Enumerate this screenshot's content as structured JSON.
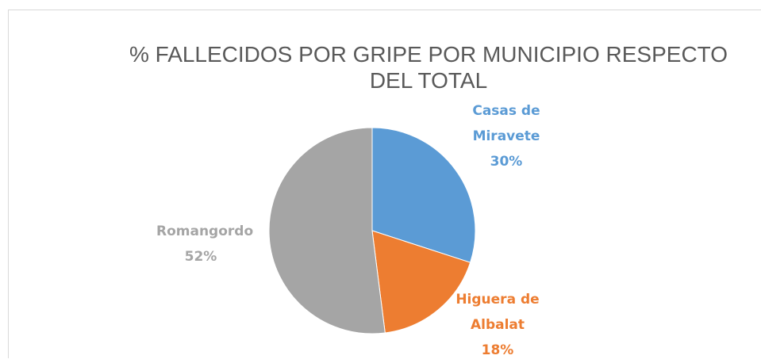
{
  "chart_data": {
    "type": "pie",
    "title": "% FALLECIDOS POR GRIPE POR MUNICIPIO RESPECTO DEL TOTAL",
    "categories": [
      "Casas de Miravete",
      "Higuera de Albalat",
      "Romangordo"
    ],
    "values": [
      30,
      18,
      52
    ],
    "value_labels": [
      "30%",
      "18%",
      "52%"
    ],
    "colors": [
      "#5b9bd5",
      "#ed7d31",
      "#a5a5a5"
    ]
  }
}
